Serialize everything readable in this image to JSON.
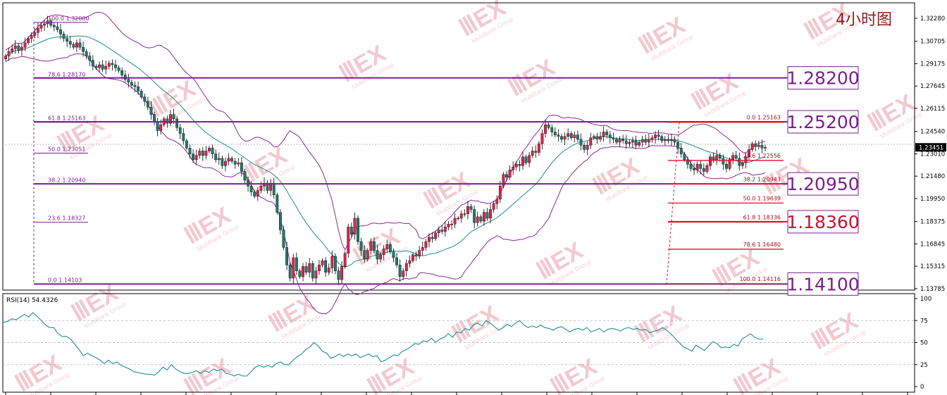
{
  "timeframe_label": "4小时图",
  "watermark": {
    "brand": "MEX",
    "sub": "MultiBank Group"
  },
  "price_axis": {
    "ticks": [
      "1.32280",
      "1.30705",
      "1.29175",
      "1.27645",
      "1.26115",
      "1.24540",
      "1.23010",
      "1.21480",
      "1.19950",
      "1.18375",
      "1.16845",
      "1.15315",
      "1.13785"
    ],
    "current_price": "1.23451"
  },
  "level_boxes": [
    "1.28200",
    "1.25200",
    "1.20950",
    "1.18360",
    "1.14100"
  ],
  "fib_left": [
    {
      "label": "100.0  1.32000"
    },
    {
      "label": "78.6  1.28170"
    },
    {
      "label": "61.8  1.25163"
    },
    {
      "label": "50.0  1.23051"
    },
    {
      "label": "38.2  1.20940"
    },
    {
      "label": "23.6  1.18327"
    },
    {
      "label": "0.0  1.14103"
    }
  ],
  "fib_right": [
    {
      "label": "0.0  1.25163"
    },
    {
      "label": "23.6  1.22556"
    },
    {
      "label": "38.2  1.20943"
    },
    {
      "label": "50.0  1.19639"
    },
    {
      "label": "61.8  1.18336"
    },
    {
      "label": "78.6  1.16480"
    },
    {
      "label": "100.0  1.14116"
    }
  ],
  "rsi": {
    "label": "RSI(14) 54.4326",
    "ticks": [
      "100",
      "75",
      "50",
      "25",
      "0"
    ],
    "levels": [
      75,
      50,
      25
    ],
    "values": [
      73,
      74,
      77,
      76,
      79,
      82,
      79,
      84,
      80,
      75,
      70,
      67,
      67,
      60,
      57,
      57,
      54,
      48,
      42,
      35,
      38,
      35,
      33,
      30,
      26,
      30,
      26,
      28,
      24,
      22,
      20,
      17,
      16,
      15,
      14,
      14,
      13,
      17,
      22,
      19,
      25,
      20,
      17,
      15,
      15,
      16,
      18,
      15,
      18,
      16,
      20,
      18,
      20,
      15,
      14,
      12,
      14,
      12,
      12,
      17,
      22,
      24,
      22,
      24,
      22,
      26,
      28,
      25,
      25,
      30,
      34,
      37,
      42,
      45,
      50,
      46,
      40,
      38,
      32,
      34,
      37,
      34,
      37,
      35,
      37,
      33,
      35,
      37,
      34,
      35,
      28,
      30,
      33,
      36,
      35,
      40,
      42,
      45,
      49,
      48,
      52,
      51,
      55,
      50,
      54,
      56,
      60,
      56,
      62,
      61,
      66,
      64,
      70,
      72,
      69,
      75,
      72,
      68,
      64,
      67,
      71,
      68,
      72,
      75,
      70,
      67,
      69,
      67,
      70,
      67,
      66,
      64,
      67,
      68,
      65,
      62,
      65,
      66,
      64,
      67,
      62,
      64,
      66,
      62,
      65,
      66,
      65,
      63,
      66,
      67,
      65,
      66,
      64,
      65,
      61,
      63,
      64,
      67,
      64,
      60,
      55,
      50,
      45,
      43,
      40,
      47,
      44,
      41,
      46,
      51,
      49,
      44,
      45,
      44,
      48,
      46,
      54,
      57,
      60,
      56,
      54,
      54
    ]
  },
  "chart_data": {
    "type": "candlestick",
    "title": "4小时图",
    "price_range": [
      1.1378,
      1.3305
    ],
    "last_price": 1.23451,
    "horizontal_levels": [
      1.282,
      1.252,
      1.2095,
      1.1836,
      1.141
    ],
    "fibonacci_left": {
      "from": 1.32,
      "to": 1.14103,
      "levels": {
        "100.0": 1.32,
        "78.6": 1.2817,
        "61.8": 1.25163,
        "50.0": 1.23051,
        "38.2": 1.2094,
        "23.6": 1.18327,
        "0.0": 1.14103
      }
    },
    "fibonacci_right": {
      "from": 1.25163,
      "to": 1.14116,
      "levels": {
        "0.0": 1.25163,
        "23.6": 1.22556,
        "38.2": 1.20943,
        "50.0": 1.19639,
        "61.8": 1.18336,
        "78.6": 1.1648,
        "100.0": 1.14116
      }
    },
    "candles_close": [
      1.297,
      1.3,
      1.302,
      1.304,
      1.301,
      1.303,
      1.306,
      1.309,
      1.311,
      1.313,
      1.316,
      1.318,
      1.319,
      1.321,
      1.318,
      1.317,
      1.315,
      1.312,
      1.309,
      1.307,
      1.305,
      1.303,
      1.306,
      1.303,
      1.3,
      1.297,
      1.294,
      1.29,
      1.289,
      1.291,
      1.288,
      1.29,
      1.292,
      1.291,
      1.289,
      1.287,
      1.284,
      1.281,
      1.279,
      1.277,
      1.276,
      1.273,
      1.269,
      1.266,
      1.262,
      1.257,
      1.252,
      1.246,
      1.25,
      1.254,
      1.251,
      1.257,
      1.254,
      1.248,
      1.244,
      1.239,
      1.234,
      1.23,
      1.226,
      1.229,
      1.232,
      1.229,
      1.232,
      1.234,
      1.23,
      1.226,
      1.227,
      1.222,
      1.225,
      1.227,
      1.225,
      1.223,
      1.224,
      1.218,
      1.212,
      1.208,
      1.204,
      1.201,
      1.205,
      1.208,
      1.21,
      1.205,
      1.21,
      1.202,
      1.19,
      1.178,
      1.166,
      1.154,
      1.145,
      1.159,
      1.15,
      1.146,
      1.153,
      1.149,
      1.155,
      1.145,
      1.15,
      1.154,
      1.157,
      1.149,
      1.152,
      1.16,
      1.15,
      1.144,
      1.153,
      1.162,
      1.18,
      1.175,
      1.186,
      1.17,
      1.164,
      1.158,
      1.164,
      1.17,
      1.164,
      1.158,
      1.161,
      1.165,
      1.168,
      1.163,
      1.159,
      1.154,
      1.146,
      1.15,
      1.155,
      1.157,
      1.161,
      1.16,
      1.164,
      1.166,
      1.17,
      1.173,
      1.172,
      1.176,
      1.178,
      1.177,
      1.18,
      1.182,
      1.182,
      1.186,
      1.186,
      1.189,
      1.189,
      1.194,
      1.192,
      1.183,
      1.187,
      1.184,
      1.19,
      1.186,
      1.192,
      1.196,
      1.199,
      1.208,
      1.216,
      1.214,
      1.219,
      1.221,
      1.223,
      1.222,
      1.228,
      1.224,
      1.229,
      1.232,
      1.231,
      1.237,
      1.244,
      1.25,
      1.248,
      1.245,
      1.243,
      1.242,
      1.24,
      1.242,
      1.244,
      1.241,
      1.243,
      1.24,
      1.236,
      1.233,
      1.236,
      1.241,
      1.242,
      1.24,
      1.242,
      1.245,
      1.243,
      1.241,
      1.24,
      1.238,
      1.24,
      1.239,
      1.237,
      1.238,
      1.239,
      1.236,
      1.238,
      1.24,
      1.238,
      1.24,
      1.241,
      1.243,
      1.242,
      1.239,
      1.24,
      1.239,
      1.24,
      1.238,
      1.234,
      1.23,
      1.226,
      1.223,
      1.22,
      1.219,
      1.223,
      1.22,
      1.218,
      1.222,
      1.228,
      1.226,
      1.229,
      1.227,
      1.223,
      1.22,
      1.226,
      1.229,
      1.227,
      1.222,
      1.224,
      1.228,
      1.233,
      1.237,
      1.235,
      1.236,
      1.234,
      1.2345
    ]
  }
}
